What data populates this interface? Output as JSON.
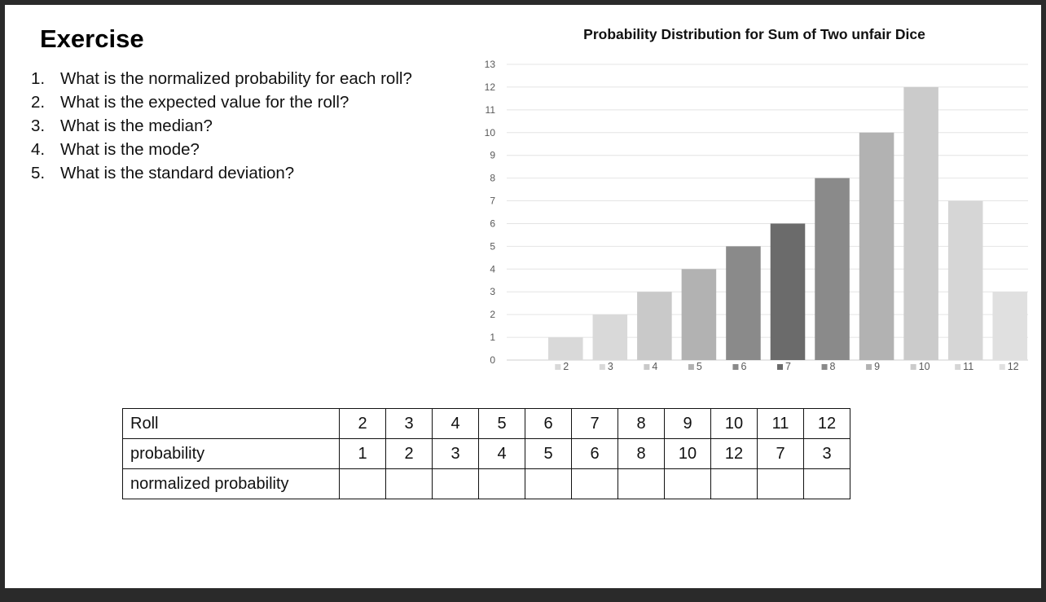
{
  "page": {
    "title": "Exercise",
    "questions": [
      {
        "num": "1.",
        "text": "What is the normalized probability for each roll?"
      },
      {
        "num": "2.",
        "text": "What is the expected value for the roll?"
      },
      {
        "num": "3.",
        "text": "What is the median?"
      },
      {
        "num": "4.",
        "text": "What is the mode?"
      },
      {
        "num": "5.",
        "text": "What is the standard deviation?"
      }
    ]
  },
  "chart_data": {
    "type": "bar",
    "title": "Probability Distribution for Sum of Two unfair Dice",
    "categories": [
      "2",
      "3",
      "4",
      "5",
      "6",
      "7",
      "8",
      "9",
      "10",
      "11",
      "12"
    ],
    "values": [
      1,
      2,
      3,
      4,
      5,
      6,
      8,
      10,
      12,
      7,
      3
    ],
    "colors": [
      "#d9d9d9",
      "#d9d9d9",
      "#c9c9c9",
      "#b2b2b2",
      "#8a8a8a",
      "#6b6b6b",
      "#8a8a8a",
      "#b2b2b2",
      "#cbcbcb",
      "#d6d6d6",
      "#e0e0e0"
    ],
    "ylim": [
      0,
      13
    ],
    "yticks": [
      0,
      1,
      2,
      3,
      4,
      5,
      6,
      7,
      8,
      9,
      10,
      11,
      12,
      13
    ],
    "grid": true,
    "legend": "bottom",
    "xlabel": "",
    "ylabel": ""
  },
  "table": {
    "rows": [
      {
        "label": "Roll",
        "cells": [
          "2",
          "3",
          "4",
          "5",
          "6",
          "7",
          "8",
          "9",
          "10",
          "11",
          "12"
        ]
      },
      {
        "label": "probability",
        "cells": [
          "1",
          "2",
          "3",
          "4",
          "5",
          "6",
          "8",
          "10",
          "12",
          "7",
          "3"
        ]
      },
      {
        "label": "normalized probability",
        "cells": [
          "",
          "",
          "",
          "",
          "",
          "",
          "",
          "",
          "",
          "",
          ""
        ]
      }
    ]
  }
}
